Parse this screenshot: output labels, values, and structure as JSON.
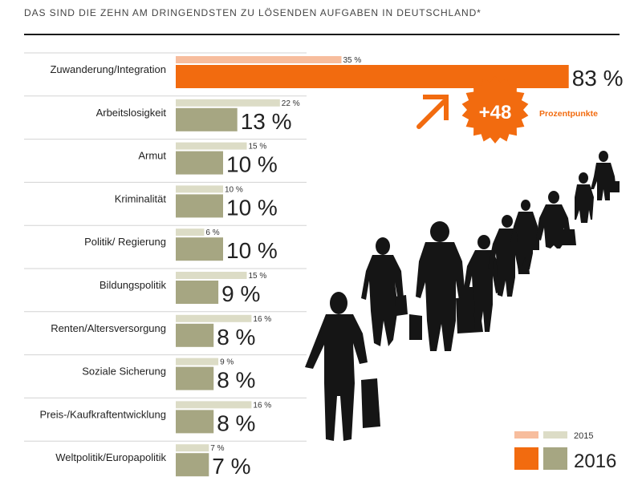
{
  "title": "DAS SIND DIE ZEHN AM DRINGENDSTEN ZU LÖSENDEN AUFGABEN IN DEUTSCHLAND*",
  "colors": {
    "prev": "#dcdcc6",
    "curr": "#a6a682",
    "highlight_prev": "#f7bd9d",
    "highlight_curr": "#f26b0f",
    "silhouette": "#151515"
  },
  "callout": {
    "value": "+48",
    "label": "Prozentpunkte",
    "arrow": "arrow-up-right-icon"
  },
  "illustration": "walking-people-silhouettes",
  "legend": {
    "prev_year": "2015",
    "curr_year": "2016"
  },
  "chart_data": {
    "type": "bar",
    "orientation": "horizontal",
    "xlim": [
      0,
      100
    ],
    "categories": [
      "Zuwanderung/Integration",
      "Arbeitslosigkeit",
      "Armut",
      "Kriminalität",
      "Politik/ Regierung",
      "Bildungspolitik",
      "Renten/Altersversorgung",
      "Soziale Sicherung",
      "Preis-/Kaufkraftentwicklung",
      "Weltpolitik/Europapolitik"
    ],
    "series": [
      {
        "name": "2015",
        "values": [
          35,
          22,
          15,
          10,
          6,
          15,
          16,
          9,
          16,
          7
        ],
        "labels": [
          "35 %",
          "22 %",
          "15 %",
          "10 %",
          "6 %",
          "15 %",
          "16 %",
          "9 %",
          "16 %",
          "7 %"
        ]
      },
      {
        "name": "2016",
        "values": [
          83,
          13,
          10,
          10,
          10,
          9,
          8,
          8,
          8,
          7
        ],
        "labels": [
          "83 %",
          "13 %",
          "10 %",
          "10 %",
          "10 %",
          "9 %",
          "8 %",
          "8 %",
          "8 %",
          "7 %"
        ]
      }
    ],
    "highlight_index": 0
  }
}
